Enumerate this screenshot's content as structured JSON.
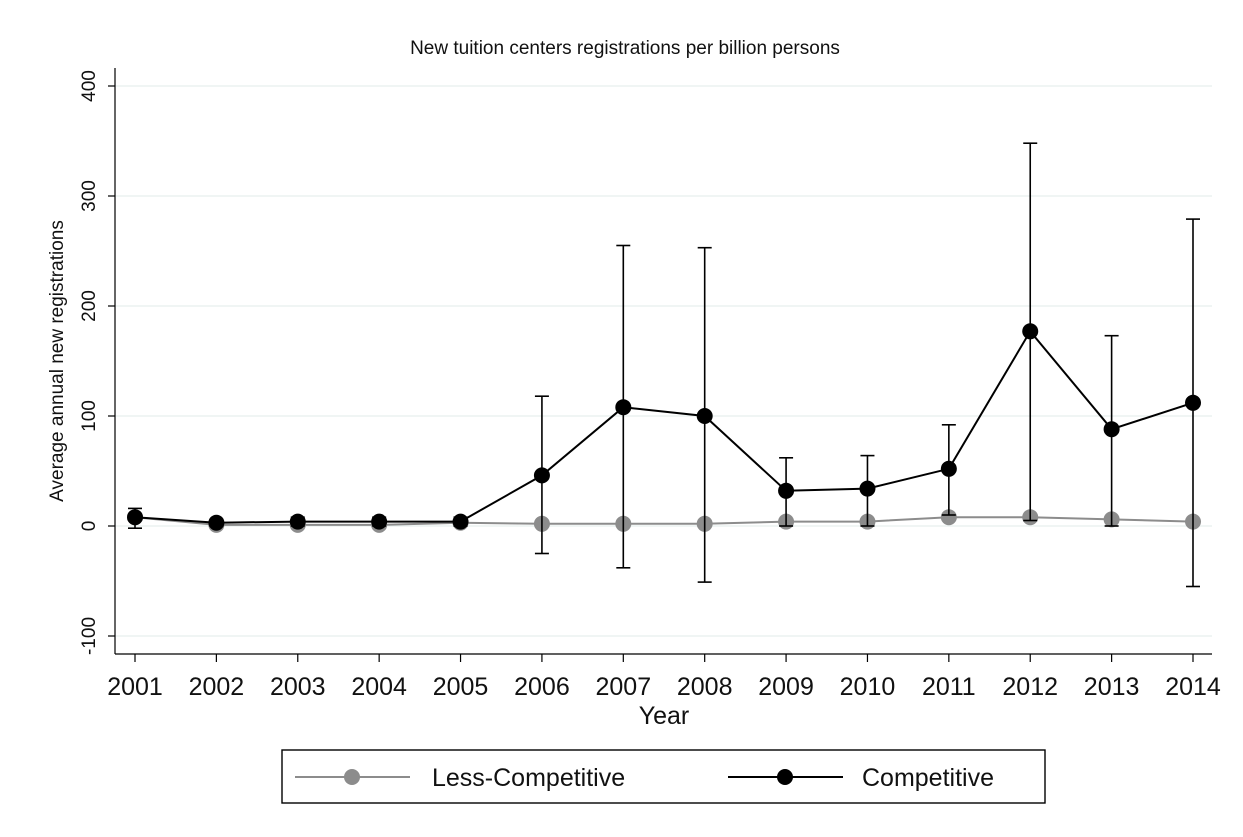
{
  "chart_data": {
    "type": "line",
    "title": "New tuition centers registrations per billion persons",
    "xlabel": "Year",
    "ylabel": "Average annual new registrations",
    "ylim": [
      -100,
      400
    ],
    "yticks": [
      -100,
      0,
      100,
      200,
      300,
      400
    ],
    "ytick_labels": [
      "-100",
      "0",
      "100",
      "200",
      "300",
      "400"
    ],
    "grid": true,
    "legend_position": "bottom",
    "x": [
      "2001",
      "2002",
      "2003",
      "2004",
      "2005",
      "2006",
      "2007",
      "2008",
      "2009",
      "2010",
      "2011",
      "2012",
      "2013",
      "2014"
    ],
    "series": [
      {
        "name": "Less-Competitive",
        "color": "#8c8c8c",
        "values": [
          8,
          1,
          1,
          1,
          3,
          2,
          2,
          2,
          4,
          4,
          8,
          8,
          6,
          4
        ]
      },
      {
        "name": "Competitive",
        "color": "#000000",
        "values": [
          8,
          3,
          4,
          4,
          4,
          46,
          108,
          100,
          32,
          34,
          52,
          177,
          88,
          112
        ],
        "error_low": [
          -2,
          0,
          0,
          0,
          0,
          -25,
          -38,
          -51,
          0,
          0,
          10,
          5,
          0,
          -55
        ],
        "error_high": [
          16,
          6,
          8,
          8,
          8,
          118,
          255,
          253,
          62,
          64,
          92,
          348,
          173,
          279
        ]
      }
    ]
  }
}
